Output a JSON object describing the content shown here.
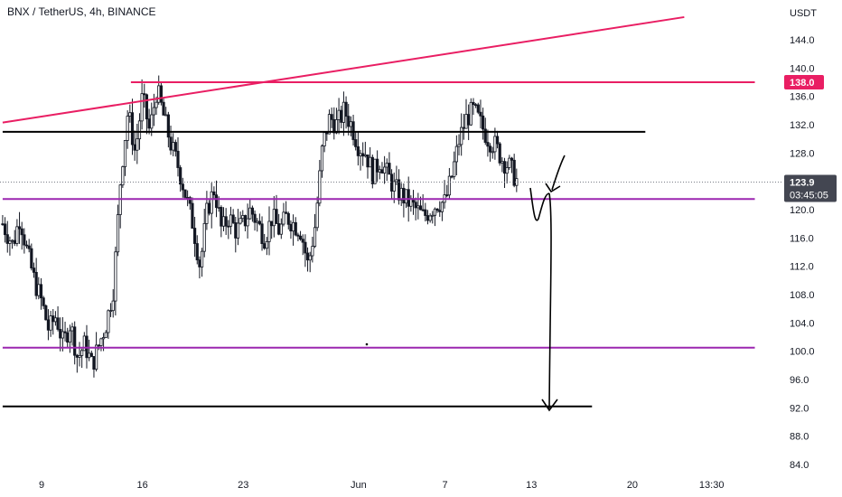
{
  "header": {
    "title": "BNX / TetherUS, 4h, BINANCE"
  },
  "axis": {
    "unit_label": "USDT"
  },
  "colors": {
    "candle": "#131722",
    "red_line": "#e91e63",
    "purple_line": "#9c27b0",
    "black_line": "#000000",
    "last_price_bg": "#434651",
    "red_tag_bg": "#e91e63",
    "dotted": "#787b86"
  },
  "chart_data": {
    "type": "candlestick",
    "symbol": "BNX / TetherUS",
    "interval": "4h",
    "exchange": "BINANCE",
    "y_ticks": [
      84.0,
      88.0,
      92.0,
      96.0,
      100.0,
      104.0,
      108.0,
      112.0,
      116.0,
      120.0,
      124.0,
      128.0,
      132.0,
      136.0,
      140.0,
      144.0
    ],
    "y_tick_labels": [
      "84.0",
      "88.0",
      "92.0",
      "96.0",
      "100.0",
      "104.0",
      "108.0",
      "112.0",
      "116.0",
      "120.0",
      "",
      "128.0",
      "132.0",
      "136.0",
      "140.0",
      "144.0"
    ],
    "ylim": [
      82.0,
      147.5
    ],
    "x_ticks": [
      {
        "label": "9",
        "t": 0
      },
      {
        "label": "16",
        "t": 7
      },
      {
        "label": "23",
        "t": 14
      },
      {
        "label": "Jun",
        "t": 22
      },
      {
        "label": "7",
        "t": 28
      },
      {
        "label": "13",
        "t": 34
      },
      {
        "label": "20",
        "t": 41
      },
      {
        "label": "13:30",
        "t": 46.5
      }
    ],
    "xlim": [
      -2.7,
      49.5
    ],
    "last_price": 123.9,
    "countdown": "03:45:05",
    "tagged_level": 138.0,
    "close_path": [
      [
        -2.7,
        118
      ],
      [
        -2,
        115
      ],
      [
        -1.5,
        119
      ],
      [
        -1,
        114
      ],
      [
        -0.5,
        110
      ],
      [
        0,
        107
      ],
      [
        0.5,
        103
      ],
      [
        1,
        105
      ],
      [
        1.5,
        101
      ],
      [
        2,
        104
      ],
      [
        2.5,
        99
      ],
      [
        3,
        101
      ],
      [
        3.5,
        98
      ],
      [
        4,
        101
      ],
      [
        4.5,
        104
      ],
      [
        5,
        109
      ],
      [
        5.5,
        125
      ],
      [
        6,
        134
      ],
      [
        6.5,
        128
      ],
      [
        7,
        136
      ],
      [
        7.5,
        131
      ],
      [
        8,
        137
      ],
      [
        8.5,
        133
      ],
      [
        9,
        129
      ],
      [
        9.5,
        126
      ],
      [
        10,
        122
      ],
      [
        10.5,
        118
      ],
      [
        11,
        112
      ],
      [
        11.5,
        120
      ],
      [
        12,
        123
      ],
      [
        12.5,
        117
      ],
      [
        13,
        119
      ],
      [
        13.5,
        117
      ],
      [
        14,
        118
      ],
      [
        14.5,
        120
      ],
      [
        15,
        118
      ],
      [
        15.5,
        116
      ],
      [
        16,
        119
      ],
      [
        16.5,
        117
      ],
      [
        17,
        119
      ],
      [
        17.5,
        118
      ],
      [
        18,
        117
      ],
      [
        18.5,
        112
      ],
      [
        19,
        118
      ],
      [
        19.5,
        129
      ],
      [
        20,
        133
      ],
      [
        20.5,
        132
      ],
      [
        21,
        134
      ],
      [
        21.5,
        132
      ],
      [
        22,
        129
      ],
      [
        22.5,
        128
      ],
      [
        23,
        125
      ],
      [
        23.5,
        127
      ],
      [
        24,
        125
      ],
      [
        24.5,
        123
      ],
      [
        25,
        122
      ],
      [
        25.5,
        121
      ],
      [
        26,
        120
      ],
      [
        26.5,
        119
      ],
      [
        27,
        120
      ],
      [
        27.5,
        121
      ],
      [
        28,
        121
      ],
      [
        28.5,
        125
      ],
      [
        29,
        130
      ],
      [
        29.5,
        133
      ],
      [
        30,
        134
      ],
      [
        30.5,
        132
      ],
      [
        31,
        130
      ],
      [
        31.5,
        129
      ],
      [
        32,
        127
      ],
      [
        32.5,
        126
      ],
      [
        33,
        124
      ]
    ],
    "lines": [
      {
        "color_key": "red_line",
        "x1": -2.7,
        "y1": 132.3,
        "x2": 44.6,
        "y2": 147.2,
        "width": 2
      },
      {
        "color_key": "red_line",
        "x1": 6.2,
        "y1": 138.0,
        "x2": 49.5,
        "y2": 138.0,
        "width": 2
      },
      {
        "color_key": "black_line",
        "x1": -2.7,
        "y1": 131.0,
        "x2": 41.9,
        "y2": 131.0,
        "width": 2
      },
      {
        "color_key": "purple_line",
        "x1": -2.7,
        "y1": 121.5,
        "x2": 49.5,
        "y2": 121.5,
        "width": 2
      },
      {
        "color_key": "purple_line",
        "x1": -2.7,
        "y1": 100.5,
        "x2": 49.5,
        "y2": 100.5,
        "width": 2
      },
      {
        "color_key": "black_line",
        "x1": -2.7,
        "y1": 92.2,
        "x2": 38.2,
        "y2": 92.2,
        "width": 2
      }
    ]
  }
}
